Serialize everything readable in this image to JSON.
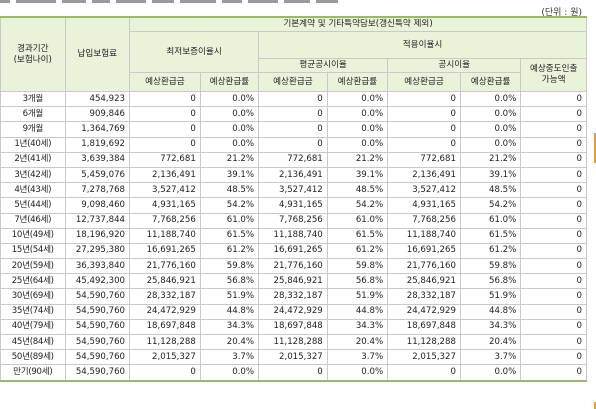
{
  "unit_label": "(단위 : 원)",
  "headers": {
    "period": "경과기간\n(보험나이)",
    "premium": "납입보험료",
    "group_main": "기본계약 및 기타특약담보(갱신특약 제외)",
    "min_guarantee": "최저보증이율시",
    "applied_rate": "적용이율시",
    "avg_public": "평균공시이율",
    "public": "공시이율",
    "refund": "예상환급금",
    "refund_rate": "예상환급률",
    "mid_withdraw": "예상중도인출\n가능액"
  },
  "rows": [
    {
      "period": "3개월",
      "premium": "454,923",
      "r1": "0",
      "p1": "0.0%",
      "r2": "0",
      "p2": "0.0%",
      "r3": "0",
      "p3": "0.0%",
      "w": "0"
    },
    {
      "period": "6개월",
      "premium": "909,846",
      "r1": "0",
      "p1": "0.0%",
      "r2": "0",
      "p2": "0.0%",
      "r3": "0",
      "p3": "0.0%",
      "w": "0"
    },
    {
      "period": "9개월",
      "premium": "1,364,769",
      "r1": "0",
      "p1": "0.0%",
      "r2": "0",
      "p2": "0.0%",
      "r3": "0",
      "p3": "0.0%",
      "w": "0"
    },
    {
      "period": "1년(40세)",
      "premium": "1,819,692",
      "r1": "0",
      "p1": "0.0%",
      "r2": "0",
      "p2": "0.0%",
      "r3": "0",
      "p3": "0.0%",
      "w": "0"
    },
    {
      "period": "2년(41세)",
      "premium": "3,639,384",
      "r1": "772,681",
      "p1": "21.2%",
      "r2": "772,681",
      "p2": "21.2%",
      "r3": "772,681",
      "p3": "21.2%",
      "w": "0"
    },
    {
      "period": "3년(42세)",
      "premium": "5,459,076",
      "r1": "2,136,491",
      "p1": "39.1%",
      "r2": "2,136,491",
      "p2": "39.1%",
      "r3": "2,136,491",
      "p3": "39.1%",
      "w": "0"
    },
    {
      "period": "4년(43세)",
      "premium": "7,278,768",
      "r1": "3,527,412",
      "p1": "48.5%",
      "r2": "3,527,412",
      "p2": "48.5%",
      "r3": "3,527,412",
      "p3": "48.5%",
      "w": "0"
    },
    {
      "period": "5년(44세)",
      "premium": "9,098,460",
      "r1": "4,931,165",
      "p1": "54.2%",
      "r2": "4,931,165",
      "p2": "54.2%",
      "r3": "4,931,165",
      "p3": "54.2%",
      "w": "0"
    },
    {
      "period": "7년(46세)",
      "premium": "12,737,844",
      "r1": "7,768,256",
      "p1": "61.0%",
      "r2": "7,768,256",
      "p2": "61.0%",
      "r3": "7,768,256",
      "p3": "61.0%",
      "w": "0"
    },
    {
      "period": "10년(49세)",
      "premium": "18,196,920",
      "r1": "11,188,740",
      "p1": "61.5%",
      "r2": "11,188,740",
      "p2": "61.5%",
      "r3": "11,188,740",
      "p3": "61.5%",
      "w": "0"
    },
    {
      "period": "15년(54세)",
      "premium": "27,295,380",
      "r1": "16,691,265",
      "p1": "61.2%",
      "r2": "16,691,265",
      "p2": "61.2%",
      "r3": "16,691,265",
      "p3": "61.2%",
      "w": "0"
    },
    {
      "period": "20년(59세)",
      "premium": "36,393,840",
      "r1": "21,776,160",
      "p1": "59.8%",
      "r2": "21,776,160",
      "p2": "59.8%",
      "r3": "21,776,160",
      "p3": "59.8%",
      "w": "0"
    },
    {
      "period": "25년(64세)",
      "premium": "45,492,300",
      "r1": "25,846,921",
      "p1": "56.8%",
      "r2": "25,846,921",
      "p2": "56.8%",
      "r3": "25,846,921",
      "p3": "56.8%",
      "w": "0"
    },
    {
      "period": "30년(69세)",
      "premium": "54,590,760",
      "r1": "28,332,187",
      "p1": "51.9%",
      "r2": "28,332,187",
      "p2": "51.9%",
      "r3": "28,332,187",
      "p3": "51.9%",
      "w": "0"
    },
    {
      "period": "35년(74세)",
      "premium": "54,590,760",
      "r1": "24,472,929",
      "p1": "44.8%",
      "r2": "24,472,929",
      "p2": "44.8%",
      "r3": "24,472,929",
      "p3": "44.8%",
      "w": "0"
    },
    {
      "period": "40년(79세)",
      "premium": "54,590,760",
      "r1": "18,697,848",
      "p1": "34.3%",
      "r2": "18,697,848",
      "p2": "34.3%",
      "r3": "18,697,848",
      "p3": "34.3%",
      "w": "0"
    },
    {
      "period": "45년(84세)",
      "premium": "54,590,760",
      "r1": "11,128,288",
      "p1": "20.4%",
      "r2": "11,128,288",
      "p2": "20.4%",
      "r3": "11,128,288",
      "p3": "20.4%",
      "w": "0"
    },
    {
      "period": "50년(89세)",
      "premium": "54,590,760",
      "r1": "2,015,327",
      "p1": "3.7%",
      "r2": "2,015,327",
      "p2": "3.7%",
      "r3": "2,015,327",
      "p3": "3.7%",
      "w": "0"
    },
    {
      "period": "만기(90세)",
      "premium": "54,590,760",
      "r1": "0",
      "p1": "0.0%",
      "r2": "0",
      "p2": "0.0%",
      "r3": "0",
      "p3": "0.0%",
      "w": "0"
    }
  ],
  "colors": {
    "header_bg": "#e9f3da",
    "border": "#c9c9c9",
    "accent_line": "#9ab86b",
    "side_marker": "#f29a2e"
  }
}
